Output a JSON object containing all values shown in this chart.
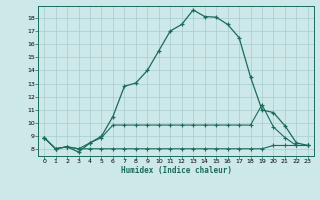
{
  "xlabel": "Humidex (Indice chaleur)",
  "background_color": "#cde8e8",
  "grid_color": "#a8cccc",
  "line_color": "#1a6b5a",
  "xlim": [
    -0.5,
    23.5
  ],
  "ylim": [
    7.5,
    18.9
  ],
  "xticks": [
    0,
    1,
    2,
    3,
    4,
    5,
    6,
    7,
    8,
    9,
    10,
    11,
    12,
    13,
    14,
    15,
    16,
    17,
    18,
    19,
    20,
    21,
    22,
    23
  ],
  "yticks": [
    8,
    9,
    10,
    11,
    12,
    13,
    14,
    15,
    16,
    17,
    18
  ],
  "line1_x": [
    0,
    1,
    2,
    3,
    4,
    5,
    6,
    7,
    8,
    9,
    10,
    11,
    12,
    13,
    14,
    15,
    16,
    17,
    18,
    19,
    20,
    21,
    22,
    23
  ],
  "line1_y": [
    8.9,
    8.05,
    8.2,
    7.8,
    8.5,
    9.0,
    10.5,
    12.8,
    13.05,
    14.0,
    15.5,
    17.0,
    17.5,
    18.6,
    18.1,
    18.05,
    17.5,
    16.5,
    13.5,
    11.0,
    10.8,
    9.8,
    8.5,
    8.3
  ],
  "line2_x": [
    0,
    1,
    2,
    3,
    4,
    5,
    6,
    7,
    8,
    9,
    10,
    11,
    12,
    13,
    14,
    15,
    16,
    17,
    18,
    19,
    20,
    21,
    22,
    23
  ],
  "line2_y": [
    8.9,
    8.05,
    8.2,
    8.05,
    8.5,
    8.9,
    9.85,
    9.85,
    9.85,
    9.85,
    9.85,
    9.85,
    9.85,
    9.85,
    9.85,
    9.85,
    9.85,
    9.85,
    9.85,
    11.4,
    9.7,
    8.9,
    8.3,
    8.3
  ],
  "line3_x": [
    0,
    1,
    2,
    3,
    4,
    5,
    6,
    7,
    8,
    9,
    10,
    11,
    12,
    13,
    14,
    15,
    16,
    17,
    18,
    19,
    20,
    21,
    22,
    23
  ],
  "line3_y": [
    8.9,
    8.05,
    8.2,
    8.05,
    8.05,
    8.05,
    8.05,
    8.05,
    8.05,
    8.05,
    8.05,
    8.05,
    8.05,
    8.05,
    8.05,
    8.05,
    8.05,
    8.05,
    8.05,
    8.05,
    8.3,
    8.3,
    8.3,
    8.3
  ]
}
